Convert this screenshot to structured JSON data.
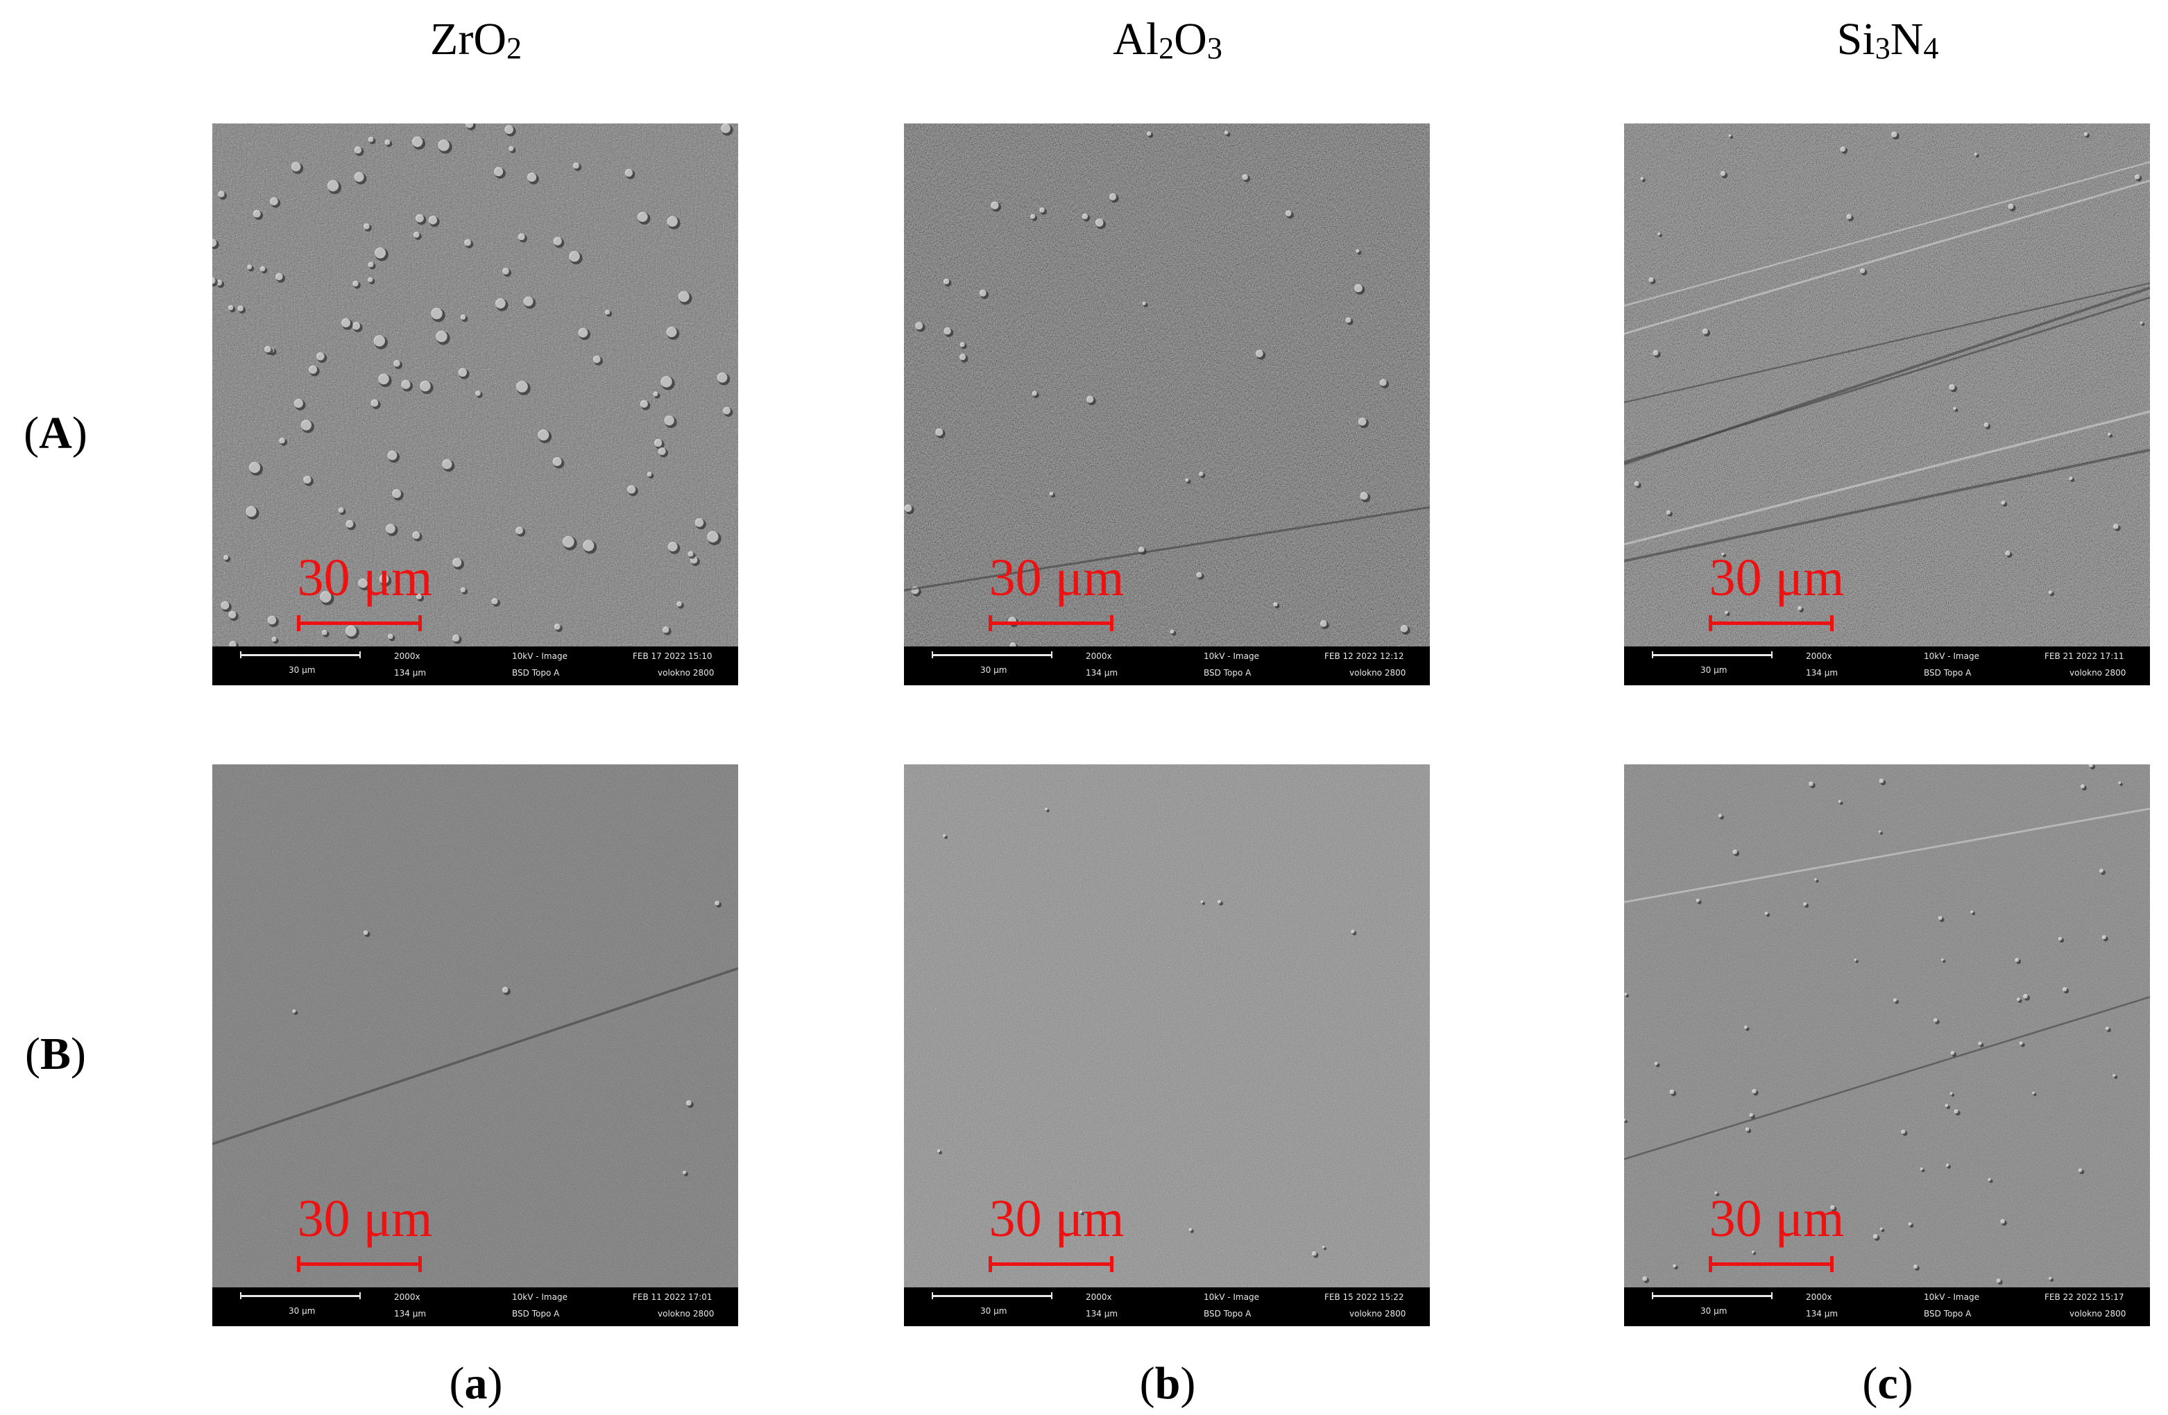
{
  "columns": [
    {
      "formula_parts": [
        "Zr",
        "O",
        "2"
      ]
    },
    {
      "formula_parts": [
        "Al",
        "2",
        "O",
        "3"
      ]
    },
    {
      "formula_parts": [
        "Si",
        "3",
        "N",
        "4"
      ]
    }
  ],
  "row_labels": [
    "A",
    "B"
  ],
  "column_sublabels": [
    "a",
    "b",
    "c"
  ],
  "scale_label": "30 μm",
  "scale_color": "#ee1111",
  "panels": [
    {
      "id": "A-a",
      "scalebar_text": "30 μm",
      "mag": "2000x",
      "field_width": "134 μm",
      "mode": "10kV - Image",
      "detector": "BSD Topo A",
      "date": "FEB 17 2022 15:10",
      "sample": "volokno 2800"
    },
    {
      "id": "A-b",
      "scalebar_text": "30 μm",
      "mag": "2000x",
      "field_width": "134 μm",
      "mode": "10kV - Image",
      "detector": "BSD Topo A",
      "date": "FEB 12 2022 12:12",
      "sample": "volokno 2800"
    },
    {
      "id": "A-c",
      "scalebar_text": "30 μm",
      "mag": "2000x",
      "field_width": "134 μm",
      "mode": "10kV - Image",
      "detector": "BSD Topo A",
      "date": "FEB 21 2022 17:11",
      "sample": "volokno 2800"
    },
    {
      "id": "B-a",
      "scalebar_text": "30 μm",
      "mag": "2000x",
      "field_width": "134 μm",
      "mode": "10kV - Image",
      "detector": "BSD Topo A",
      "date": "FEB 11 2022 17:01",
      "sample": "volokno 2800"
    },
    {
      "id": "B-b",
      "scalebar_text": "30 μm",
      "mag": "2000x",
      "field_width": "134 μm",
      "mode": "10kV - Image",
      "detector": "BSD Topo A",
      "date": "FEB 15 2022 15:22",
      "sample": "volokno 2800"
    },
    {
      "id": "B-c",
      "scalebar_text": "30 μm",
      "mag": "2000x",
      "field_width": "134 μm",
      "mode": "10kV - Image",
      "detector": "BSD Topo A",
      "date": "FEB 22 2022 15:17",
      "sample": "volokno 2800"
    }
  ]
}
